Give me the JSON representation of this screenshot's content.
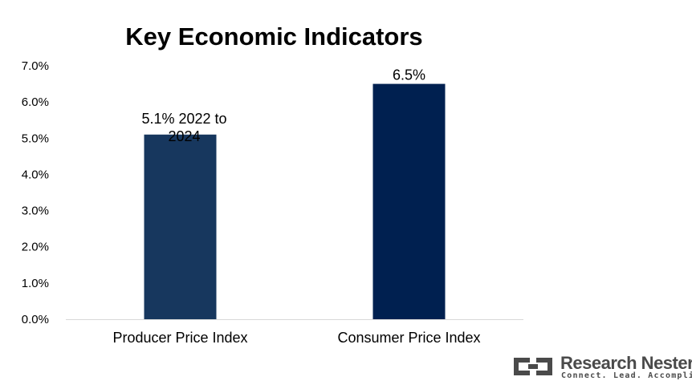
{
  "chart_data": {
    "type": "bar",
    "title": "Key Economic Indicators",
    "categories": [
      "Producer Price Index",
      "Consumer Price Index"
    ],
    "values": [
      5.1,
      6.5
    ],
    "data_labels": [
      "5.1% 2022 to 2024",
      "6.5%"
    ],
    "bar_colors": [
      "#17375e",
      "#002050"
    ],
    "ylim": [
      0,
      7
    ],
    "yticks": [
      "0.0%",
      "1.0%",
      "2.0%",
      "3.0%",
      "4.0%",
      "5.0%",
      "6.0%",
      "7.0%"
    ],
    "xlabel": "",
    "ylabel": "",
    "grid": false,
    "legend": "none"
  },
  "branding": {
    "name": "Research Nester",
    "tagline": "Connect. Lead. Accomplish",
    "color": "#4a4a4a"
  }
}
